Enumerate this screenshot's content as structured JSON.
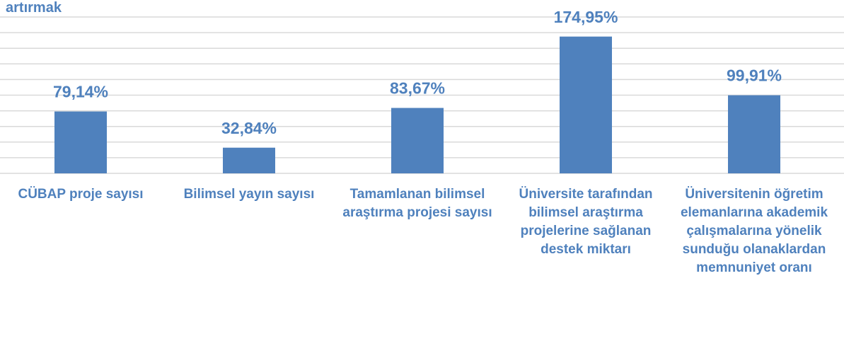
{
  "chart_data": {
    "type": "bar",
    "title": "artırmak",
    "categories": [
      "CÜBAP proje sayısı",
      "Bilimsel yayın sayısı",
      "Tamamlanan bilimsel araştırma projesi sayısı",
      "Üniversite tarafından bilimsel araştırma projelerine sağlanan destek miktarı",
      "Üniversitenin öğretim elemanlarına akademik çalışmalarına yönelik sunduğu olanaklardan memnuniyet oranı"
    ],
    "values": [
      79.14,
      32.84,
      83.67,
      174.95,
      99.91
    ],
    "value_labels": [
      "79,14%",
      "32,84%",
      "83,67%",
      "174,95%",
      "99,91%"
    ],
    "color": "#4f81bd",
    "ylim": [
      0,
      200
    ],
    "yticks": [
      0,
      20,
      40,
      60,
      80,
      100,
      120,
      140,
      160,
      180,
      200
    ],
    "grid": true
  }
}
